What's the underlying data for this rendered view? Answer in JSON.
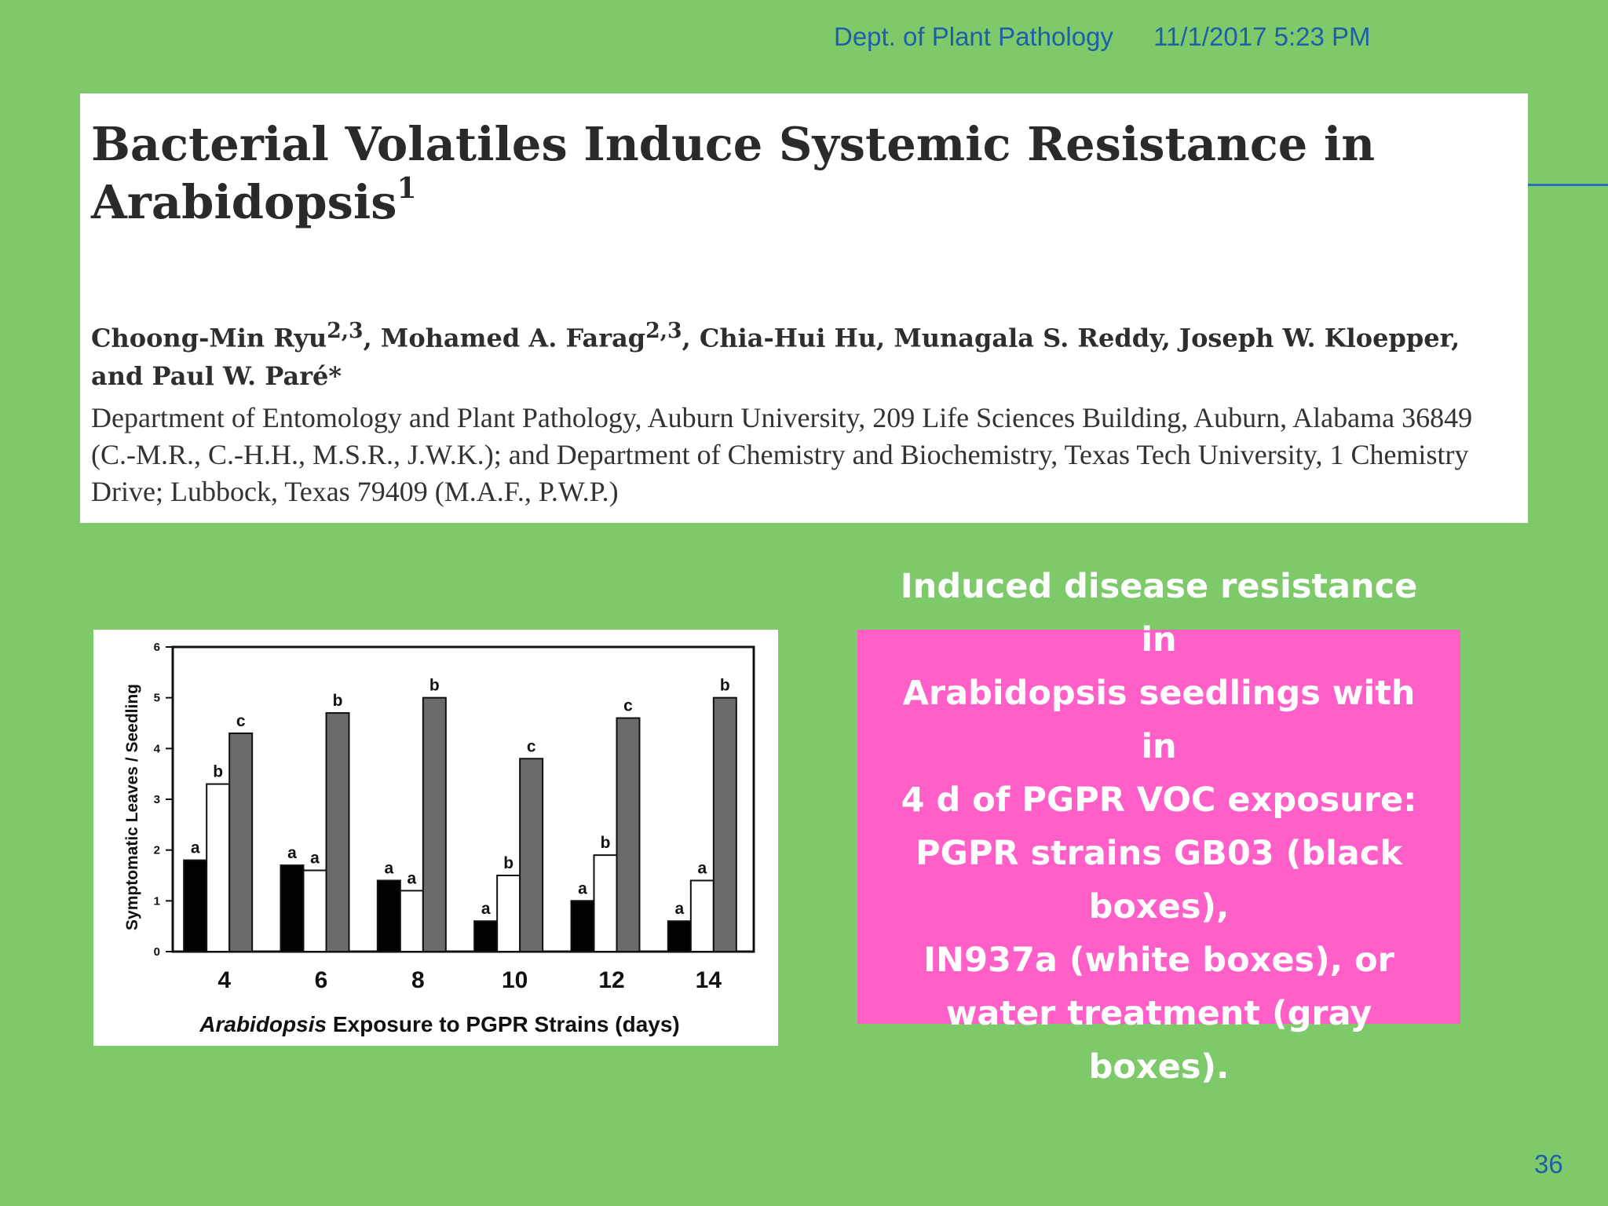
{
  "header": {
    "department": "Dept. of Plant Pathology",
    "datetime": "11/1/2017 5:23 PM"
  },
  "paper": {
    "title": "Bacterial Volatiles Induce Systemic Resistance in Arabidopsis",
    "title_footnote": "1",
    "authors_html": "Choong-Min Ryu<sup>2,3</sup>, Mohamed A. Farag<sup>2,3</sup>, Chia-Hui Hu, Munagala S. Reddy, Joseph W. Kloepper, and Paul W. Paré*",
    "affiliation": "Department of Entomology and Plant Pathology, Auburn University, 209 Life Sciences Building, Auburn, Alabama 36849 (C.-M.R., C.-H.H., M.S.R., J.W.K.); and Department of Chemistry and Biochemistry, Texas Tech University, 1 Chemistry Drive; Lubbock, Texas 79409 (M.A.F., P.W.P.)"
  },
  "caption": {
    "lines": [
      "Induced disease resistance in",
      "Arabidopsis seedlings with in",
      "4 d of PGPR VOC exposure:",
      "PGPR strains GB03 (black",
      "boxes),",
      "IN937a (white boxes), or",
      "water treatment (gray boxes)."
    ]
  },
  "page_number": "36",
  "colors": {
    "background": "#7ec96a",
    "header_text": "#1f5fa8",
    "caption_bg": "#ff5fc6",
    "bar_black": "#000000",
    "bar_white": "#ffffff",
    "bar_gray": "#6b6b6b"
  },
  "chart_data": {
    "type": "bar",
    "xlabel_italic": "Arabidopsis",
    "xlabel_rest": "Exposure to PGPR Strains (days)",
    "ylabel": "Symptomatic Leaves / Seedling",
    "ylim": [
      0,
      6
    ],
    "yticks": [
      0,
      1,
      2,
      3,
      4,
      5,
      6
    ],
    "categories": [
      "4",
      "6",
      "8",
      "10",
      "12",
      "14"
    ],
    "series": [
      {
        "fill": "#000000",
        "values": [
          1.8,
          1.7,
          1.4,
          0.6,
          1.0,
          0.6
        ],
        "labels": [
          "a",
          "a",
          "a",
          "a",
          "a",
          "a"
        ]
      },
      {
        "fill": "#ffffff",
        "values": [
          3.3,
          1.6,
          1.2,
          1.5,
          1.9,
          1.4
        ],
        "labels": [
          "b",
          "a",
          "a",
          "b",
          "b",
          "a"
        ]
      },
      {
        "fill": "#6b6b6b",
        "values": [
          4.3,
          4.7,
          5.0,
          3.8,
          4.6,
          5.0
        ],
        "labels": [
          "c",
          "b",
          "b",
          "c",
          "c",
          "b"
        ]
      }
    ],
    "grid": false,
    "legend": "none"
  }
}
